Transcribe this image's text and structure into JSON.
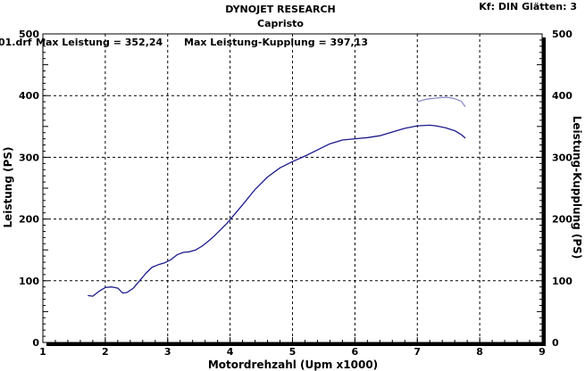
{
  "header": {
    "title": "DYNOJET RESEARCH",
    "subtitle": "Capristo",
    "corner": "Kf: DIN  Glätten: 3",
    "file_prefix": "01.drf",
    "max_leistung": "Max Leistung = 352,24",
    "max_kupplung": "Max Leistung-Kupplung = 397,13"
  },
  "chart_data": {
    "type": "line",
    "title": "DYNOJET RESEARCH",
    "subtitle": "Capristo",
    "xlabel": "Motordrehzahl (Upm x1000)",
    "ylabel": "Leistung (PS)",
    "y2label": "Leistung-Kupplung (PS)",
    "xlim": [
      1,
      9
    ],
    "ylim": [
      0,
      500
    ],
    "y2lim": [
      0,
      500
    ],
    "grid": true,
    "x_ticks": [
      "1",
      "2",
      "3",
      "4",
      "5",
      "6",
      "7",
      "8",
      "9"
    ],
    "y_ticks": [
      "0",
      "100",
      "200",
      "300",
      "400",
      "500"
    ],
    "y2_ticks": [
      "0",
      "100",
      "200",
      "300",
      "400",
      "500"
    ],
    "series": [
      {
        "name": "Leistung",
        "color": "#1a1a8c",
        "x": [
          1.72,
          1.8,
          1.9,
          2.0,
          2.1,
          2.2,
          2.28,
          2.35,
          2.45,
          2.55,
          2.65,
          2.75,
          2.85,
          2.95,
          3.05,
          3.15,
          3.25,
          3.35,
          3.45,
          3.55,
          3.65,
          3.75,
          3.85,
          3.95,
          4.05,
          4.2,
          4.4,
          4.6,
          4.8,
          5.0,
          5.2,
          5.4,
          5.6,
          5.8,
          6.0,
          6.2,
          6.4,
          6.6,
          6.8,
          7.0,
          7.2,
          7.3,
          7.45,
          7.6,
          7.7,
          7.77
        ],
        "y": [
          76,
          75,
          83,
          89,
          90,
          88,
          80,
          81,
          88,
          100,
          112,
          122,
          126,
          129,
          134,
          142,
          146,
          147,
          150,
          156,
          164,
          173,
          183,
          193,
          205,
          223,
          248,
          268,
          283,
          293,
          302,
          312,
          322,
          328,
          330,
          332,
          335,
          341,
          347,
          351,
          352,
          351,
          348,
          343,
          337,
          331
        ]
      },
      {
        "name": "Leistung-Kupplung",
        "color": "#8c8cc8",
        "x": [
          7.0,
          7.1,
          7.2,
          7.3,
          7.4,
          7.5,
          7.6,
          7.7,
          7.77
        ],
        "y": [
          390,
          393,
          395,
          396,
          397,
          397,
          395,
          391,
          382
        ]
      }
    ]
  }
}
